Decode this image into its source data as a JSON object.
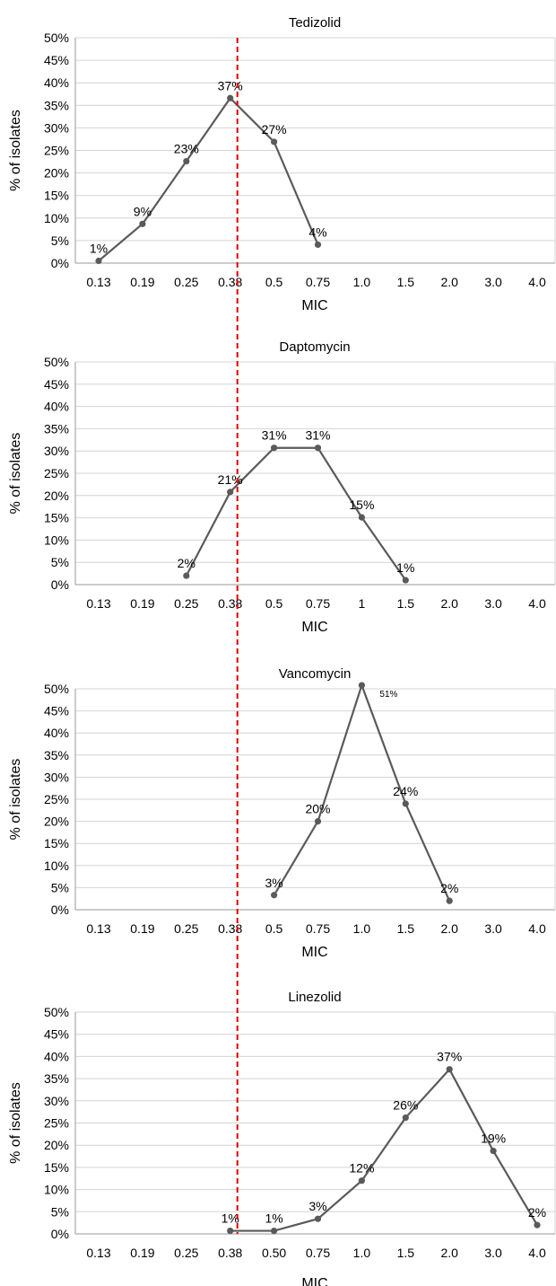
{
  "colors": {
    "line": "#5a5a5a",
    "grid": "#d4d4d4",
    "frame": "#999999",
    "reference_line": "#e00000",
    "text": "#000000"
  },
  "chart_data": [
    {
      "type": "line",
      "title": "Tedizolid",
      "xlabel": "MIC",
      "ylabel": "% of isolates",
      "ylim": [
        0,
        50
      ],
      "yticks": [
        "0%",
        "5%",
        "10%",
        "15%",
        "20%",
        "25%",
        "30%",
        "35%",
        "40%",
        "45%",
        "50%"
      ],
      "categories": [
        "0.13",
        "0.19",
        "0.25",
        "0.38",
        "0.5",
        "0.75",
        "1.0",
        "1.5",
        "2.0",
        "3.0",
        "4.0"
      ],
      "values": [
        0.5,
        8.7,
        22.6,
        36.6,
        26.9,
        4.1,
        null,
        null,
        null,
        null,
        null
      ],
      "data_labels": [
        "1%",
        "9%",
        "23%",
        "37%",
        "27%",
        "4%",
        "",
        "",
        "",
        "",
        ""
      ],
      "reference_line_at": "0.38",
      "grid": true
    },
    {
      "type": "line",
      "title": "Daptomycin",
      "xlabel": "MIC",
      "ylabel": "% of isolates",
      "ylim": [
        0,
        50
      ],
      "yticks": [
        "0%",
        "5%",
        "10%",
        "15%",
        "20%",
        "25%",
        "30%",
        "35%",
        "40%",
        "45%",
        "50%"
      ],
      "categories": [
        "0.13",
        "0.19",
        "0.25",
        "0.38",
        "0.5",
        "0.75",
        "1",
        "1.5",
        "2.0",
        "3.0",
        "4.0"
      ],
      "values": [
        null,
        null,
        2.0,
        20.8,
        30.7,
        30.7,
        15.1,
        1.0,
        null,
        null,
        null
      ],
      "data_labels": [
        "",
        "",
        "2%",
        "21%",
        "31%",
        "31%",
        "15%",
        "1%",
        "",
        "",
        ""
      ],
      "reference_line_at": "0.38",
      "grid": true
    },
    {
      "type": "line",
      "title": "Vancomycin",
      "xlabel": "MIC",
      "ylabel": "% of isolates",
      "ylim": [
        0,
        50
      ],
      "yticks": [
        "0%",
        "5%",
        "10%",
        "15%",
        "20%",
        "25%",
        "30%",
        "35%",
        "40%",
        "45%",
        "50%"
      ],
      "categories": [
        "0.13",
        "0.19",
        "0.25",
        "0.38",
        "0.5",
        "0.75",
        "1.0",
        "1.5",
        "2.0",
        "3.0",
        "4.0"
      ],
      "values": [
        null,
        null,
        null,
        null,
        3.3,
        20.0,
        50.8,
        24.0,
        2.0,
        null,
        null
      ],
      "data_labels": [
        "",
        "",
        "",
        "",
        "3%",
        "20%",
        "51%",
        "24%",
        "2%",
        "",
        ""
      ],
      "reference_line_at": "0.38",
      "grid": true
    },
    {
      "type": "line",
      "title": "Linezolid",
      "xlabel": "MIC",
      "ylabel": "% of isolates",
      "ylim": [
        0,
        50
      ],
      "yticks": [
        "0%",
        "5%",
        "10%",
        "15%",
        "20%",
        "25%",
        "30%",
        "35%",
        "40%",
        "45%",
        "50%"
      ],
      "categories": [
        "0.13",
        "0.19",
        "0.25",
        "0.38",
        "0.50",
        "0.75",
        "1.0",
        "1.5",
        "2.0",
        "3.0",
        "4.0"
      ],
      "values": [
        null,
        null,
        null,
        0.7,
        0.7,
        3.4,
        12.0,
        26.2,
        37.1,
        18.7,
        2.0
      ],
      "data_labels": [
        "",
        "",
        "",
        "1%",
        "1%",
        "3%",
        "12%",
        "26%",
        "37%",
        "19%",
        "2%"
      ],
      "reference_line_at": "0.38",
      "grid": true
    }
  ]
}
